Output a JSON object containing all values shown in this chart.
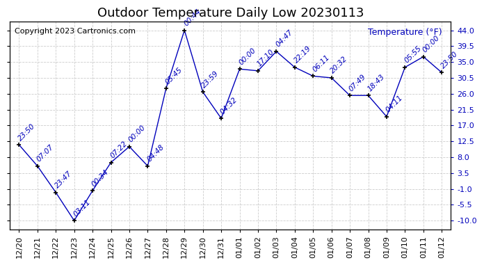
{
  "title": "Outdoor Temperature Daily Low 20230113",
  "copyright": "Copyright 2023 Cartronics.com",
  "temp_label": "Temperature (°F)",
  "background_color": "#ffffff",
  "line_color": "#0000bb",
  "grid_color": "#cccccc",
  "dates": [
    "12/20",
    "12/21",
    "12/22",
    "12/23",
    "12/24",
    "12/25",
    "12/26",
    "12/27",
    "12/28",
    "12/29",
    "12/30",
    "12/31",
    "01/01",
    "01/02",
    "01/03",
    "01/04",
    "01/05",
    "01/06",
    "01/07",
    "01/08",
    "01/09",
    "01/10",
    "01/11",
    "01/12"
  ],
  "temperatures": [
    11.5,
    5.5,
    -2.0,
    -10.0,
    -1.5,
    6.5,
    11.0,
    5.5,
    27.5,
    44.0,
    26.5,
    19.0,
    33.0,
    32.5,
    38.0,
    33.5,
    31.0,
    30.5,
    25.5,
    25.5,
    19.5,
    33.5,
    36.5,
    32.0
  ],
  "time_labels": [
    "23:50",
    "07:07",
    "23:47",
    "03:11",
    "00:34",
    "07:22",
    "00:00",
    "04:48",
    "05:45",
    "00:44",
    "23:59",
    "04:32",
    "00:00",
    "17:10",
    "04:47",
    "22:19",
    "06:11",
    "20:32",
    "07:49",
    "18:43",
    "04:11",
    "05:55",
    "00:00",
    "23:50"
  ],
  "ylim": [
    -12.5,
    46.5
  ],
  "yticks": [
    -10.0,
    -5.5,
    -1.0,
    3.5,
    8.0,
    12.5,
    17.0,
    21.5,
    26.0,
    30.5,
    35.0,
    39.5,
    44.0
  ],
  "title_fontsize": 13,
  "label_fontsize": 8,
  "tick_fontsize": 8,
  "copyright_fontsize": 8,
  "annot_fontsize": 7.5
}
